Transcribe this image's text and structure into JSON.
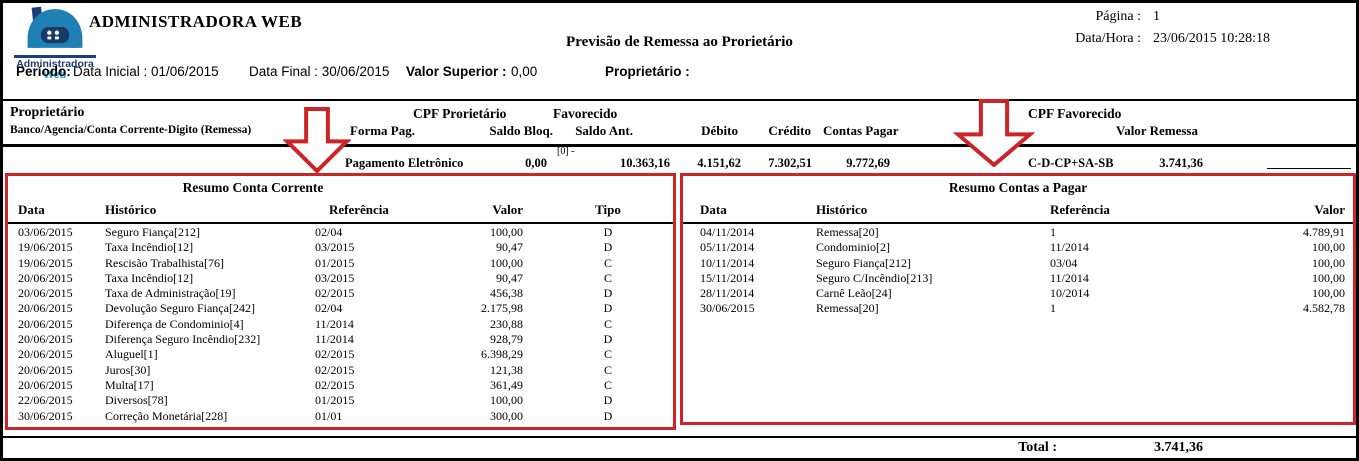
{
  "colors": {
    "accent_red": "#cc2428",
    "logo_blue": "#1e80b4",
    "logo_navy": "#1c3e74",
    "logo_light_blue": "#2e9fd6"
  },
  "header": {
    "logo": {
      "line1": "Administradora",
      "line2": "Web",
      "house_icon": "house-icon"
    },
    "company_title": "ADMINISTRADORA WEB",
    "report_title": "Previsão de Remessa ao Prorietário",
    "page_label": "Página :",
    "page_value": "1",
    "datetime_label": "Data/Hora :",
    "datetime_value": "23/06/2015 10:28:18",
    "periodo_label": "Período:",
    "data_inicial": "Data Inicial : 01/06/2015",
    "data_final": "Data Final : 30/06/2015",
    "valor_superior_label": "Valor Superior :",
    "valor_superior_value": "0,00",
    "proprietario_filter_label": "Proprietário :"
  },
  "summary": {
    "col_proprietario": "Proprietário",
    "col_banco": "Banco/Agencia/Conta Corrente-Digito (Remessa)",
    "col_cpf_proprietario": "CPF Prorietário",
    "col_favorecido": "Favorecido",
    "col_forma_pag": "Forma Pag.",
    "col_saldo_bloq": "Saldo Bloq.",
    "col_saldo_ant": "Saldo Ant.",
    "col_debito": "Débito",
    "col_credito": "Crédito",
    "col_contas_pagar": "Contas Pagar",
    "col_cpf_favorecido": "CPF Favorecido",
    "col_valor_remessa": "Valor Remessa",
    "row": {
      "forma_pag": "Pagamento Eletrônico",
      "saldo_bloq": "0,00",
      "saldo_ant_note": "[0] -",
      "saldo_ant": "10.363,16",
      "debito": "4.151,62",
      "credito": "7.302,51",
      "contas_pagar": "9.772,69",
      "formula": "C-D-CP+SA-SB",
      "valor_remessa": "3.741,36"
    }
  },
  "conta_corrente": {
    "title": "Resumo Conta Corrente",
    "columns": [
      "Data",
      "Histórico",
      "Referência",
      "Valor",
      "Tipo"
    ],
    "rows": [
      [
        "03/06/2015",
        "Seguro Fiança[212]",
        "02/04",
        "100,00",
        "D"
      ],
      [
        "19/06/2015",
        "Taxa Incêndio[12]",
        "03/2015",
        "90,47",
        "D"
      ],
      [
        "19/06/2015",
        "Rescisão Trabalhista[76]",
        "01/2015",
        "100,00",
        "C"
      ],
      [
        "20/06/2015",
        "Taxa Incêndio[12]",
        "03/2015",
        "90,47",
        "C"
      ],
      [
        "20/06/2015",
        "Taxa de Administração[19]",
        "02/2015",
        "456,38",
        "D"
      ],
      [
        "20/06/2015",
        "Devolução Seguro Fiança[242]",
        "02/04",
        "2.175,98",
        "D"
      ],
      [
        "20/06/2015",
        "Diferença de Condominio[4]",
        "11/2014",
        "230,88",
        "C"
      ],
      [
        "20/06/2015",
        "Diferença Seguro Incêndio[232]",
        "11/2014",
        "928,79",
        "D"
      ],
      [
        "20/06/2015",
        "Aluguel[1]",
        "02/2015",
        "6.398,29",
        "C"
      ],
      [
        "20/06/2015",
        "Juros[30]",
        "02/2015",
        "121,38",
        "C"
      ],
      [
        "20/06/2015",
        "Multa[17]",
        "02/2015",
        "361,49",
        "C"
      ],
      [
        "22/06/2015",
        "Diversos[78]",
        "01/2015",
        "100,00",
        "D"
      ],
      [
        "30/06/2015",
        "Correção Monetária[228]",
        "01/01",
        "300,00",
        "D"
      ]
    ]
  },
  "contas_pagar": {
    "title": "Resumo Contas a Pagar",
    "columns": [
      "Data",
      "Histórico",
      "Referência",
      "Valor"
    ],
    "rows": [
      [
        "04/11/2014",
        "Remessa[20]",
        "1",
        "4.789,91"
      ],
      [
        "05/11/2014",
        "Condominio[2]",
        "11/2014",
        "100,00"
      ],
      [
        "10/11/2014",
        "Seguro Fiança[212]",
        "03/04",
        "100,00"
      ],
      [
        "15/11/2014",
        "Seguro C/Incêndio[213]",
        "11/2014",
        "100,00"
      ],
      [
        "28/11/2014",
        "Carnê Leão[24]",
        "10/2014",
        "100,00"
      ],
      [
        "30/06/2015",
        "Remessa[20]",
        "1",
        "4.582,78"
      ]
    ]
  },
  "footer": {
    "total_label": "Total :",
    "total_value": "3.741,36"
  }
}
